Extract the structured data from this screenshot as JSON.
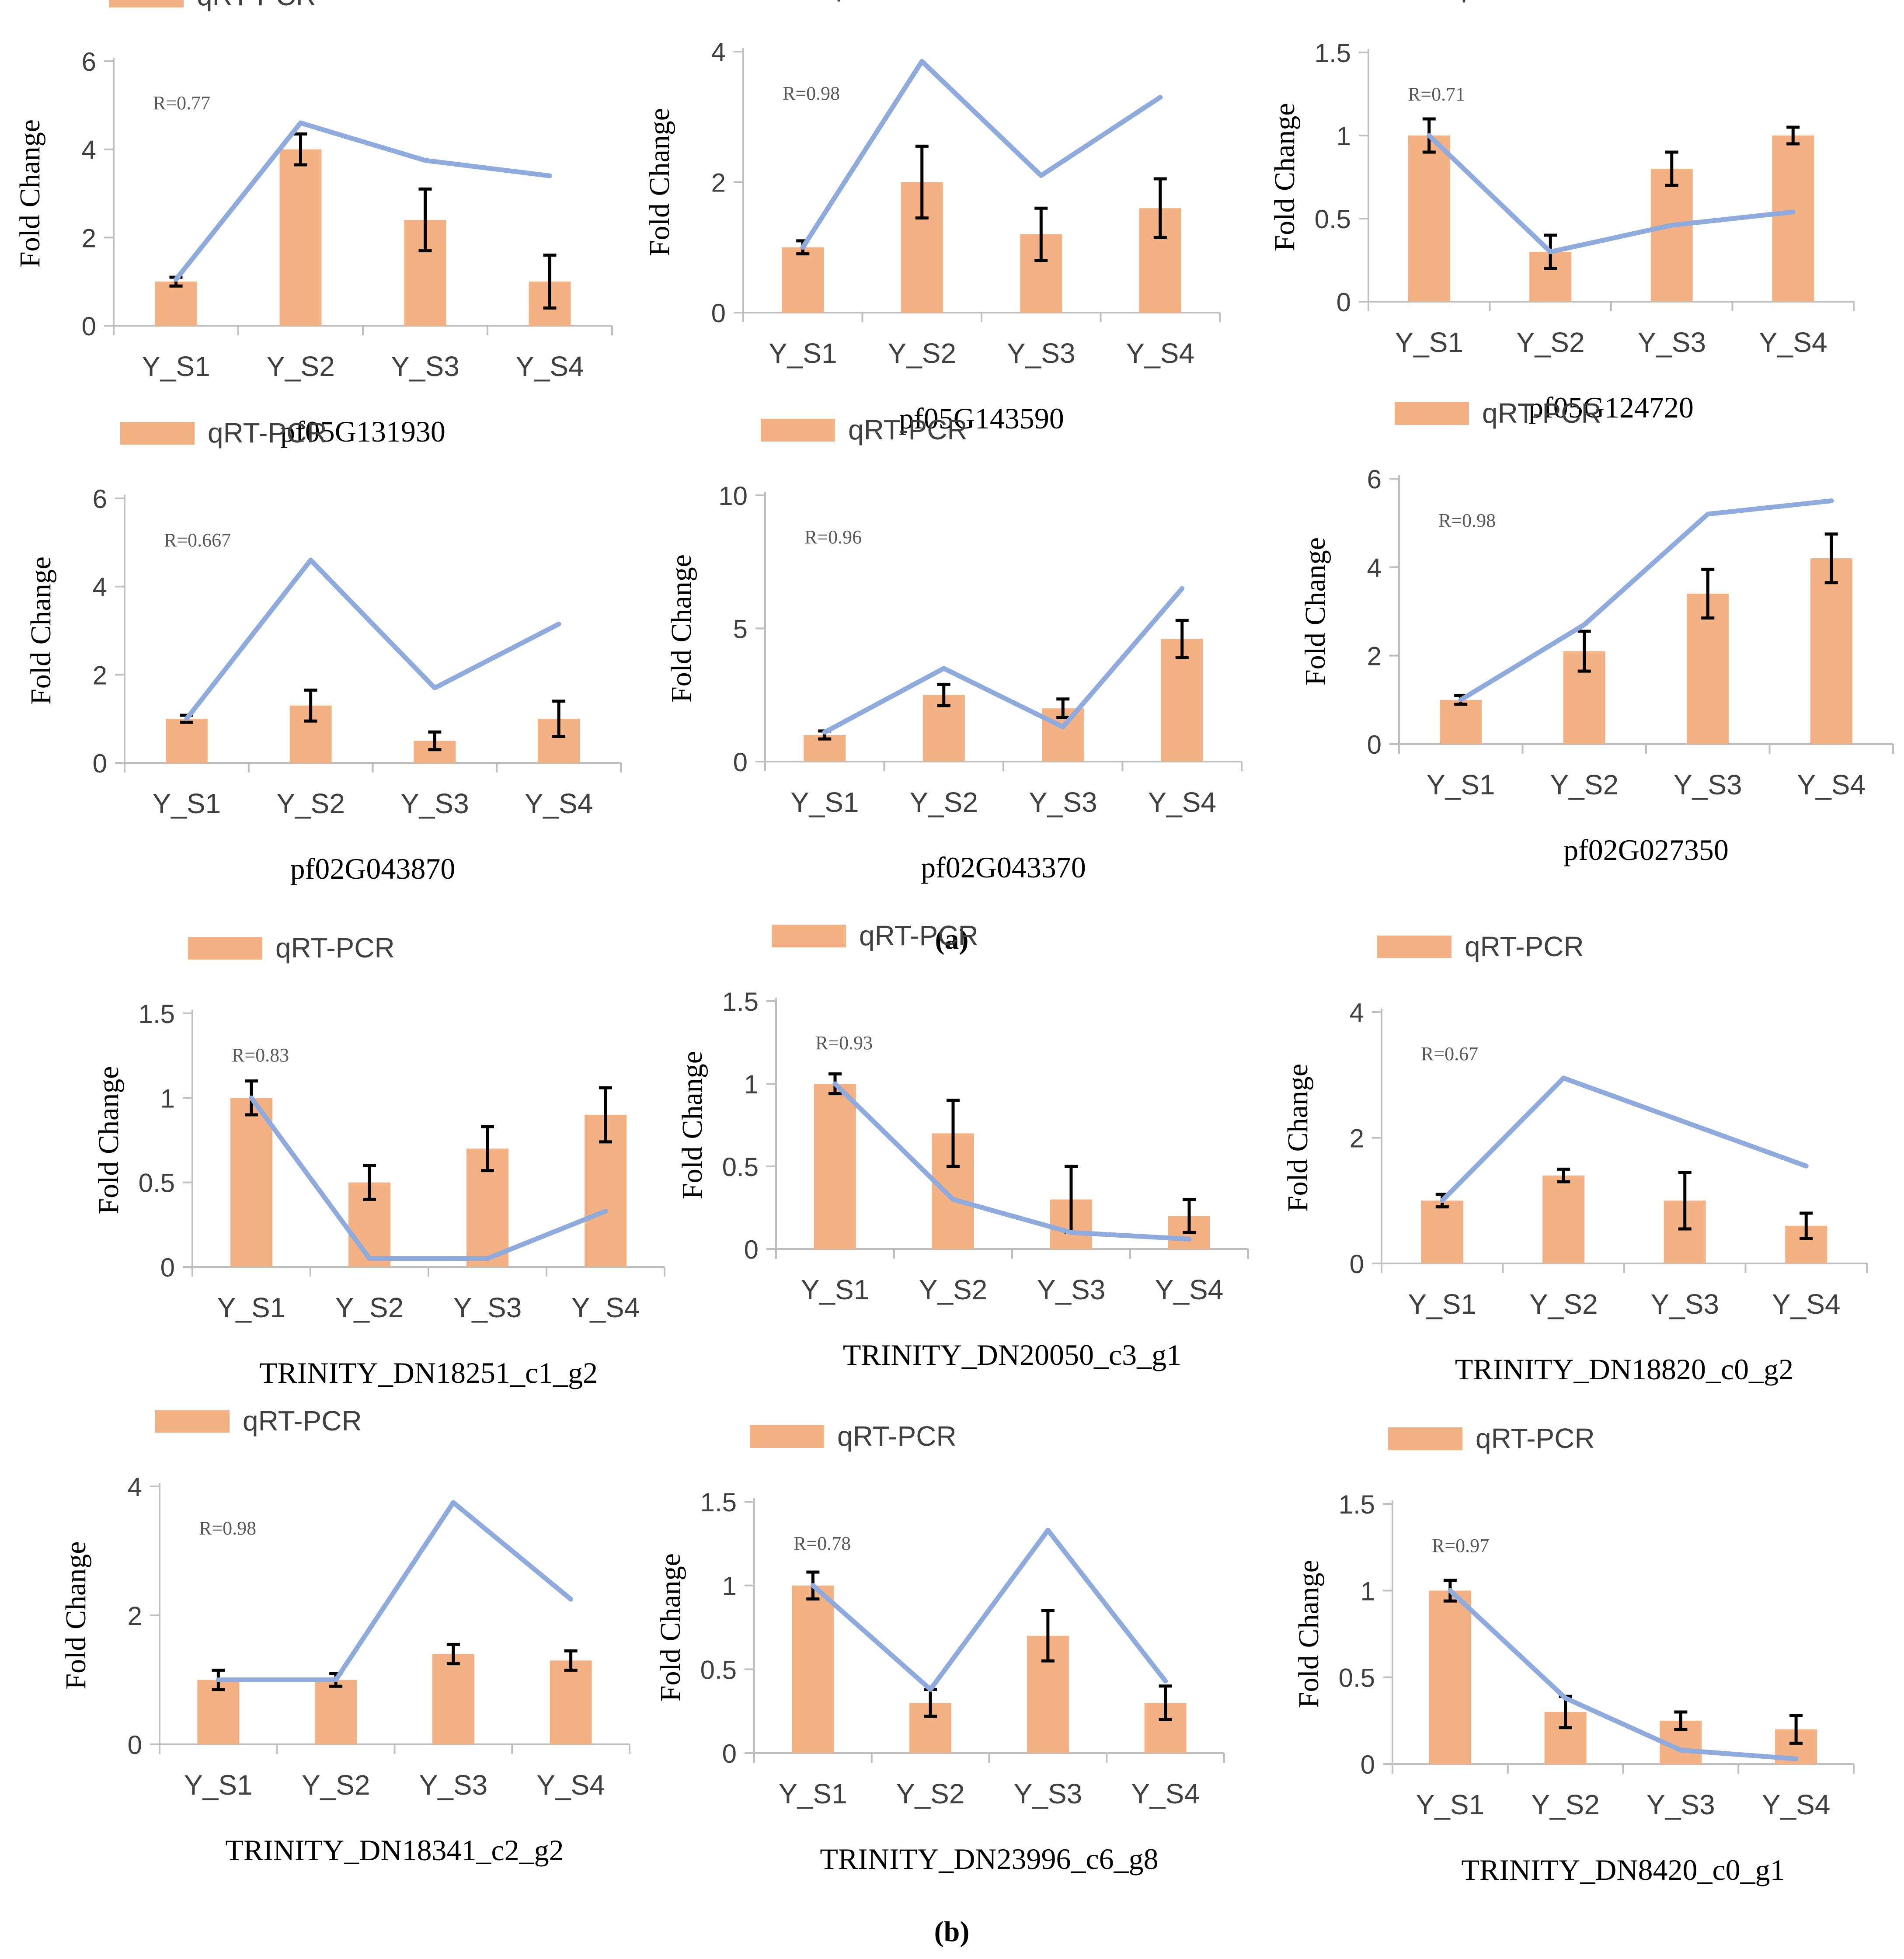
{
  "panel_labels": [
    "(a)",
    "(b)"
  ],
  "chart_data": [
    {
      "type": "bar+line",
      "title": "pf05G131930",
      "ylabel": "Fold Change",
      "legend": "qRT-PCR",
      "annotation": "R=0.77",
      "categories": [
        "Y_S1",
        "Y_S2",
        "Y_S3",
        "Y_S4"
      ],
      "ylim": [
        0,
        6
      ],
      "yticks": [
        "0",
        "2",
        "4",
        "6"
      ],
      "bars": [
        1.0,
        4.0,
        2.4,
        1.0
      ],
      "errors": [
        0.1,
        0.35,
        0.7,
        0.6
      ],
      "line": [
        1.05,
        4.6,
        3.75,
        3.4
      ]
    },
    {
      "type": "bar+line",
      "title": "pf05G143590",
      "ylabel": "Fold Change",
      "legend": "qRT-PCR",
      "annotation": "R=0.98",
      "categories": [
        "Y_S1",
        "Y_S2",
        "Y_S3",
        "Y_S4"
      ],
      "ylim": [
        0,
        4
      ],
      "yticks": [
        "0",
        "2",
        "4"
      ],
      "bars": [
        1.0,
        2.0,
        1.2,
        1.6
      ],
      "errors": [
        0.1,
        0.55,
        0.4,
        0.45
      ],
      "line": [
        1.0,
        3.85,
        2.1,
        3.3
      ]
    },
    {
      "type": "bar+line",
      "title": "pf05G124720",
      "ylabel": "Fold Change",
      "legend": "qRT-PCR",
      "annotation": "R=0.71",
      "categories": [
        "Y_S1",
        "Y_S2",
        "Y_S3",
        "Y_S4"
      ],
      "ylim": [
        0,
        1.5
      ],
      "yticks": [
        "0",
        "0.5",
        "1",
        "1.5"
      ],
      "bars": [
        1.0,
        0.3,
        0.8,
        1.0
      ],
      "errors": [
        0.1,
        0.1,
        0.1,
        0.05
      ],
      "line": [
        1.0,
        0.3,
        0.46,
        0.54
      ]
    },
    {
      "type": "bar+line",
      "title": "pf02G043870",
      "ylabel": "Fold Change",
      "legend": "qRT-PCR",
      "annotation": "R=0.667",
      "categories": [
        "Y_S1",
        "Y_S2",
        "Y_S3",
        "Y_S4"
      ],
      "ylim": [
        0,
        6
      ],
      "yticks": [
        "0",
        "2",
        "4",
        "6"
      ],
      "bars": [
        1.0,
        1.3,
        0.5,
        1.0
      ],
      "errors": [
        0.08,
        0.35,
        0.2,
        0.4
      ],
      "line": [
        1.0,
        4.6,
        1.7,
        3.15
      ]
    },
    {
      "type": "bar+line",
      "title": "pf02G043370",
      "ylabel": "Fold Change",
      "legend": "qRT-PCR",
      "annotation": "R=0.96",
      "categories": [
        "Y_S1",
        "Y_S2",
        "Y_S3",
        "Y_S4"
      ],
      "ylim": [
        0,
        10
      ],
      "yticks": [
        "0",
        "5",
        "10"
      ],
      "bars": [
        1.0,
        2.5,
        2.0,
        4.6
      ],
      "errors": [
        0.15,
        0.4,
        0.35,
        0.7
      ],
      "line": [
        1.1,
        3.5,
        1.3,
        6.5
      ]
    },
    {
      "type": "bar+line",
      "title": "pf02G027350",
      "ylabel": "Fold Change",
      "legend": "qRT-PCR",
      "annotation": "R=0.98",
      "categories": [
        "Y_S1",
        "Y_S2",
        "Y_S3",
        "Y_S4"
      ],
      "ylim": [
        0,
        6
      ],
      "yticks": [
        "0",
        "2",
        "4",
        "6"
      ],
      "bars": [
        1.0,
        2.1,
        3.4,
        4.2
      ],
      "errors": [
        0.1,
        0.45,
        0.55,
        0.55
      ],
      "line": [
        1.0,
        2.7,
        5.2,
        5.5
      ]
    },
    {
      "type": "bar+line",
      "title": "TRINITY_DN18251_c1_g2",
      "ylabel": "Fold Change",
      "legend": "qRT-PCR",
      "annotation": "R=0.83",
      "categories": [
        "Y_S1",
        "Y_S2",
        "Y_S3",
        "Y_S4"
      ],
      "ylim": [
        0,
        1.5
      ],
      "yticks": [
        "0",
        "0.5",
        "1",
        "1.5"
      ],
      "bars": [
        1.0,
        0.5,
        0.7,
        0.9
      ],
      "errors": [
        0.1,
        0.1,
        0.13,
        0.16
      ],
      "line": [
        1.0,
        0.05,
        0.05,
        0.33
      ]
    },
    {
      "type": "bar+line",
      "title": "TRINITY_DN20050_c3_g1",
      "ylabel": "Fold Change",
      "legend": "qRT-PCR",
      "annotation": "R=0.93",
      "categories": [
        "Y_S1",
        "Y_S2",
        "Y_S3",
        "Y_S4"
      ],
      "ylim": [
        0,
        1.5
      ],
      "yticks": [
        "0",
        "0.5",
        "1",
        "1.5"
      ],
      "bars": [
        1.0,
        0.7,
        0.3,
        0.2
      ],
      "errors": [
        0.06,
        0.2,
        0.2,
        0.1
      ],
      "line": [
        1.0,
        0.3,
        0.1,
        0.06
      ]
    },
    {
      "type": "bar+line",
      "title": "TRINITY_DN18820_c0_g2",
      "ylabel": "Fold Change",
      "legend": "qRT-PCR",
      "annotation": "R=0.67",
      "categories": [
        "Y_S1",
        "Y_S2",
        "Y_S3",
        "Y_S4"
      ],
      "ylim": [
        0,
        4
      ],
      "yticks": [
        "0",
        "2",
        "4"
      ],
      "bars": [
        1.0,
        1.4,
        1.0,
        0.6
      ],
      "errors": [
        0.1,
        0.1,
        0.45,
        0.2
      ],
      "line": [
        1.0,
        2.95,
        2.25,
        1.55
      ]
    },
    {
      "type": "bar+line",
      "title": "TRINITY_DN18341_c2_g2",
      "ylabel": "Fold Change",
      "legend": "qRT-PCR",
      "annotation": "R=0.98",
      "categories": [
        "Y_S1",
        "Y_S2",
        "Y_S3",
        "Y_S4"
      ],
      "ylim": [
        0,
        4
      ],
      "yticks": [
        "0",
        "2",
        "4"
      ],
      "bars": [
        1.0,
        1.0,
        1.4,
        1.3
      ],
      "errors": [
        0.15,
        0.1,
        0.15,
        0.15
      ],
      "line": [
        1.0,
        1.0,
        3.75,
        2.25
      ]
    },
    {
      "type": "bar+line",
      "title": "TRINITY_DN23996_c6_g8",
      "ylabel": "Fold Change",
      "legend": "qRT-PCR",
      "annotation": "R=0.78",
      "categories": [
        "Y_S1",
        "Y_S2",
        "Y_S3",
        "Y_S4"
      ],
      "ylim": [
        0,
        1.5
      ],
      "yticks": [
        "0",
        "0.5",
        "1",
        "1.5"
      ],
      "bars": [
        1.0,
        0.3,
        0.7,
        0.3
      ],
      "errors": [
        0.08,
        0.08,
        0.15,
        0.1
      ],
      "line": [
        1.0,
        0.38,
        1.33,
        0.43
      ]
    },
    {
      "type": "bar+line",
      "title": "TRINITY_DN8420_c0_g1",
      "ylabel": "Fold Change",
      "legend": "qRT-PCR",
      "annotation": "R=0.97",
      "categories": [
        "Y_S1",
        "Y_S2",
        "Y_S3",
        "Y_S4"
      ],
      "ylim": [
        0,
        1.5
      ],
      "yticks": [
        "0",
        "0.5",
        "1",
        "1.5"
      ],
      "bars": [
        1.0,
        0.3,
        0.25,
        0.2
      ],
      "errors": [
        0.06,
        0.09,
        0.05,
        0.08
      ],
      "line": [
        1.0,
        0.38,
        0.08,
        0.03
      ]
    }
  ],
  "colors": {
    "bar": "#f4b183",
    "line": "#8faadc",
    "axis": "#bfbfbf",
    "error": "#000000",
    "text": "#404040"
  }
}
